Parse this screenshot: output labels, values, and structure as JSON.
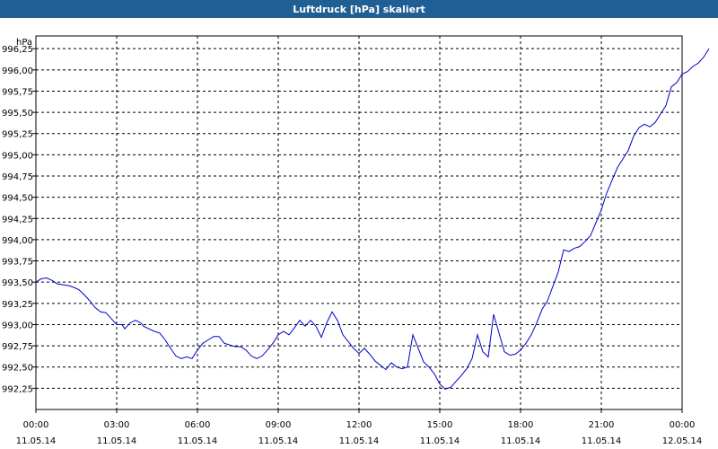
{
  "window": {
    "title": "Luftdruck [hPa] skaliert"
  },
  "chart_data": {
    "type": "line",
    "title": "Luftdruck [hPa] skaliert",
    "ylabel": "hPa",
    "xlabel": "",
    "xlim_hours": [
      0,
      24
    ],
    "ylim": [
      992.0,
      996.4
    ],
    "grid": true,
    "y_ticks": [
      {
        "value": 992.25,
        "label": "992,25"
      },
      {
        "value": 992.5,
        "label": "992,50"
      },
      {
        "value": 992.75,
        "label": "992,75"
      },
      {
        "value": 993.0,
        "label": "993,00"
      },
      {
        "value": 993.25,
        "label": "993,25"
      },
      {
        "value": 993.5,
        "label": "993,50"
      },
      {
        "value": 993.75,
        "label": "993,75"
      },
      {
        "value": 994.0,
        "label": "994,00"
      },
      {
        "value": 994.25,
        "label": "994,25"
      },
      {
        "value": 994.5,
        "label": "994,50"
      },
      {
        "value": 994.75,
        "label": "994,75"
      },
      {
        "value": 995.0,
        "label": "995,00"
      },
      {
        "value": 995.25,
        "label": "995,25"
      },
      {
        "value": 995.5,
        "label": "995,50"
      },
      {
        "value": 995.75,
        "label": "995,75"
      },
      {
        "value": 996.0,
        "label": "996,00"
      },
      {
        "value": 996.25,
        "label": "996,25"
      }
    ],
    "x_ticks": [
      {
        "hour": 0,
        "time": "00:00",
        "date": "11.05.14"
      },
      {
        "hour": 3,
        "time": "03:00",
        "date": "11.05.14"
      },
      {
        "hour": 6,
        "time": "06:00",
        "date": "11.05.14"
      },
      {
        "hour": 9,
        "time": "09:00",
        "date": "11.05.14"
      },
      {
        "hour": 12,
        "time": "12:00",
        "date": "11.05.14"
      },
      {
        "hour": 15,
        "time": "15:00",
        "date": "11.05.14"
      },
      {
        "hour": 18,
        "time": "18:00",
        "date": "11.05.14"
      },
      {
        "hour": 21,
        "time": "21:00",
        "date": "11.05.14"
      },
      {
        "hour": 24,
        "time": "00:00",
        "date": "12.05.14"
      }
    ],
    "series": [
      {
        "color": "#0000cc",
        "points": [
          [
            0.0,
            993.5
          ],
          [
            0.2,
            993.54
          ],
          [
            0.4,
            993.55
          ],
          [
            0.6,
            993.52
          ],
          [
            0.8,
            993.48
          ],
          [
            1.0,
            993.47
          ],
          [
            1.2,
            993.46
          ],
          [
            1.4,
            993.44
          ],
          [
            1.6,
            993.41
          ],
          [
            1.8,
            993.35
          ],
          [
            2.0,
            993.28
          ],
          [
            2.2,
            993.2
          ],
          [
            2.4,
            993.15
          ],
          [
            2.6,
            993.14
          ],
          [
            2.8,
            993.07
          ],
          [
            3.0,
            993.0
          ],
          [
            3.2,
            993.0
          ],
          [
            3.3,
            992.95
          ],
          [
            3.5,
            993.02
          ],
          [
            3.7,
            993.05
          ],
          [
            3.9,
            993.02
          ],
          [
            4.0,
            992.98
          ],
          [
            4.2,
            992.95
          ],
          [
            4.4,
            992.92
          ],
          [
            4.6,
            992.9
          ],
          [
            4.8,
            992.82
          ],
          [
            5.0,
            992.72
          ],
          [
            5.2,
            992.63
          ],
          [
            5.4,
            992.6
          ],
          [
            5.6,
            992.62
          ],
          [
            5.8,
            992.6
          ],
          [
            6.0,
            992.7
          ],
          [
            6.2,
            992.78
          ],
          [
            6.4,
            992.82
          ],
          [
            6.6,
            992.86
          ],
          [
            6.8,
            992.86
          ],
          [
            7.0,
            992.78
          ],
          [
            7.2,
            992.76
          ],
          [
            7.4,
            992.74
          ],
          [
            7.6,
            992.74
          ],
          [
            7.8,
            992.7
          ],
          [
            8.0,
            992.63
          ],
          [
            8.2,
            992.6
          ],
          [
            8.4,
            992.63
          ],
          [
            8.6,
            992.7
          ],
          [
            8.8,
            992.78
          ],
          [
            9.0,
            992.88
          ],
          [
            9.2,
            992.92
          ],
          [
            9.4,
            992.88
          ],
          [
            9.6,
            992.96
          ],
          [
            9.8,
            993.05
          ],
          [
            10.0,
            992.98
          ],
          [
            10.2,
            993.05
          ],
          [
            10.4,
            992.98
          ],
          [
            10.6,
            992.85
          ],
          [
            10.8,
            993.02
          ],
          [
            11.0,
            993.15
          ],
          [
            11.2,
            993.05
          ],
          [
            11.4,
            992.88
          ],
          [
            11.6,
            992.8
          ],
          [
            11.8,
            992.72
          ],
          [
            12.0,
            992.66
          ],
          [
            12.2,
            992.72
          ],
          [
            12.4,
            992.65
          ],
          [
            12.6,
            992.57
          ],
          [
            12.8,
            992.52
          ],
          [
            13.0,
            992.47
          ],
          [
            13.2,
            992.55
          ],
          [
            13.4,
            992.5
          ],
          [
            13.6,
            992.48
          ],
          [
            13.8,
            992.5
          ],
          [
            14.0,
            992.88
          ],
          [
            14.2,
            992.72
          ],
          [
            14.4,
            992.56
          ],
          [
            14.6,
            992.5
          ],
          [
            14.8,
            992.42
          ],
          [
            15.0,
            992.3
          ],
          [
            15.2,
            992.24
          ],
          [
            15.4,
            992.26
          ],
          [
            15.6,
            992.33
          ],
          [
            15.8,
            992.4
          ],
          [
            16.0,
            992.48
          ],
          [
            16.2,
            992.6
          ],
          [
            16.4,
            992.88
          ],
          [
            16.6,
            992.68
          ],
          [
            16.8,
            992.62
          ],
          [
            17.0,
            993.12
          ],
          [
            17.2,
            992.9
          ],
          [
            17.4,
            992.68
          ],
          [
            17.6,
            992.64
          ],
          [
            17.8,
            992.65
          ],
          [
            18.0,
            992.7
          ],
          [
            18.2,
            992.78
          ],
          [
            18.4,
            992.88
          ],
          [
            18.6,
            993.02
          ],
          [
            18.8,
            993.18
          ],
          [
            19.0,
            993.28
          ],
          [
            19.2,
            993.45
          ],
          [
            19.4,
            993.62
          ],
          [
            19.6,
            993.88
          ],
          [
            19.8,
            993.86
          ],
          [
            20.0,
            993.9
          ],
          [
            20.2,
            993.92
          ],
          [
            20.4,
            993.98
          ],
          [
            20.6,
            994.05
          ],
          [
            20.8,
            994.2
          ],
          [
            21.0,
            994.35
          ],
          [
            21.2,
            994.55
          ],
          [
            21.4,
            994.7
          ],
          [
            21.6,
            994.85
          ],
          [
            21.8,
            994.95
          ],
          [
            22.0,
            995.05
          ],
          [
            22.2,
            995.22
          ],
          [
            22.4,
            995.32
          ],
          [
            22.6,
            995.36
          ],
          [
            22.8,
            995.33
          ],
          [
            23.0,
            995.38
          ],
          [
            23.2,
            995.48
          ],
          [
            23.4,
            995.58
          ],
          [
            23.6,
            995.8
          ],
          [
            23.8,
            995.85
          ],
          [
            24.0,
            995.95
          ],
          [
            24.2,
            995.98
          ],
          [
            24.4,
            996.04
          ],
          [
            24.6,
            996.08
          ],
          [
            24.8,
            996.15
          ],
          [
            25.0,
            996.25
          ]
        ]
      }
    ]
  }
}
